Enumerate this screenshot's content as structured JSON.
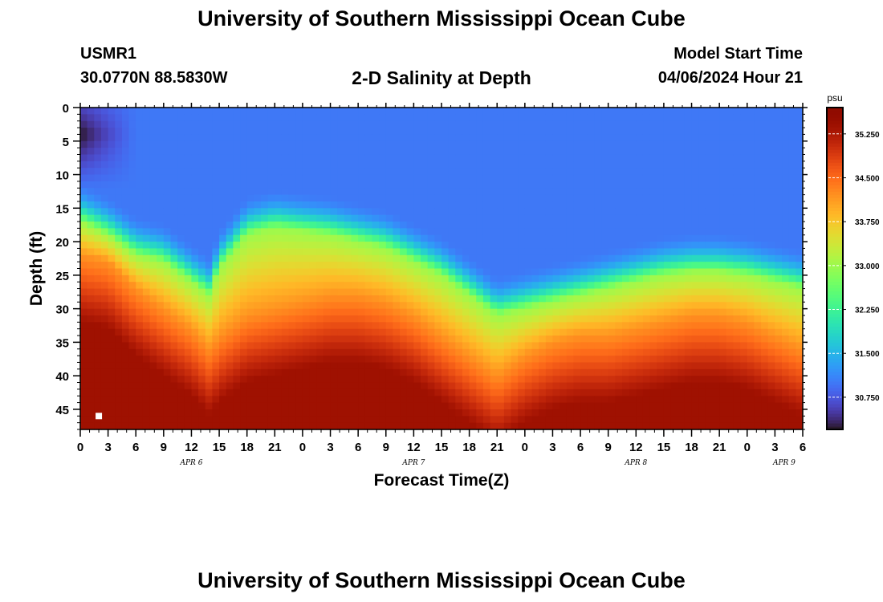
{
  "header": {
    "title": "University of Southern Mississippi Ocean Cube",
    "station_id": "USMR1",
    "coordinates": "30.0770N  88.5830W",
    "plot_title": "2-D Salinity at Depth",
    "model_start_label": "Model Start Time",
    "model_start_value": "04/06/2024 Hour 21"
  },
  "footer": {
    "title": "University of Southern Mississippi Ocean Cube"
  },
  "chart_data": {
    "type": "heatmap",
    "title": "2-D Salinity at Depth",
    "xlabel": "Forecast Time(Z)",
    "ylabel": "Depth (ft)",
    "x_range_hours_from_apr6_00z": [
      0,
      78
    ],
    "xlim": [
      "04/06 00Z",
      "04/09 06Z"
    ],
    "x_tick_labels": [
      "0",
      "3",
      "6",
      "9",
      "12",
      "15",
      "18",
      "21",
      "0",
      "3",
      "6",
      "9",
      "12",
      "15",
      "18",
      "21",
      "0",
      "3",
      "6",
      "9",
      "12",
      "15",
      "18",
      "21",
      "0",
      "3",
      "6"
    ],
    "x_tick_values": [
      "04/06 00Z",
      "04/06 03Z",
      "04/06 06Z",
      "04/06 09Z",
      "04/06 12Z",
      "04/06 15Z",
      "04/06 18Z",
      "04/06 21Z",
      "04/07 00Z",
      "04/07 03Z",
      "04/07 06Z",
      "04/07 09Z",
      "04/07 12Z",
      "04/07 15Z",
      "04/07 18Z",
      "04/07 21Z",
      "04/08 00Z",
      "04/08 03Z",
      "04/08 06Z",
      "04/08 09Z",
      "04/08 12Z",
      "04/08 15Z",
      "04/08 18Z",
      "04/08 21Z",
      "04/09 00Z",
      "04/09 03Z",
      "04/09 06Z"
    ],
    "day_labels": [
      {
        "label": "APR 6",
        "at": "04/06 12Z"
      },
      {
        "label": "APR 7",
        "at": "04/07 12Z"
      },
      {
        "label": "APR 8",
        "at": "04/08 12Z"
      },
      {
        "label": "APR 9",
        "at": "04/09 04Z"
      }
    ],
    "ylim": [
      0,
      48
    ],
    "y_inverted": true,
    "y_ticks": [
      0,
      5,
      10,
      15,
      20,
      25,
      30,
      35,
      40,
      45
    ],
    "colorbar": {
      "unit": "psu",
      "range": [
        30.2,
        35.7
      ],
      "ticks": [
        "30.750",
        "31.500",
        "32.250",
        "33.000",
        "33.750",
        "34.500",
        "35.250"
      ],
      "colormap": "turbo"
    },
    "field_description_values": {
      "surface_salinity_psu": 31.0,
      "bottom_salinity_psu": 35.4,
      "min_salinity_psu": 30.2,
      "halocline_center_depth_ft": [
        {
          "time": "04/06 00Z",
          "depth": 17
        },
        {
          "time": "04/06 03Z",
          "depth": 19
        },
        {
          "time": "04/06 06Z",
          "depth": 22
        },
        {
          "time": "04/06 09Z",
          "depth": 23
        },
        {
          "time": "04/06 12Z",
          "depth": 26
        },
        {
          "time": "04/06 14Z",
          "depth": 28
        },
        {
          "time": "04/06 15Z",
          "depth": 24
        },
        {
          "time": "04/06 18Z",
          "depth": 19
        },
        {
          "time": "04/06 21Z",
          "depth": 18
        },
        {
          "time": "04/07 00Z",
          "depth": 18.5
        },
        {
          "time": "04/07 03Z",
          "depth": 19
        },
        {
          "time": "04/07 06Z",
          "depth": 20
        },
        {
          "time": "04/07 09Z",
          "depth": 21
        },
        {
          "time": "04/07 12Z",
          "depth": 23
        },
        {
          "time": "04/07 15Z",
          "depth": 25
        },
        {
          "time": "04/07 18Z",
          "depth": 28
        },
        {
          "time": "04/07 21Z",
          "depth": 31
        },
        {
          "time": "04/08 00Z",
          "depth": 30
        },
        {
          "time": "04/08 03Z",
          "depth": 29
        },
        {
          "time": "04/08 06Z",
          "depth": 28
        },
        {
          "time": "04/08 09Z",
          "depth": 27
        },
        {
          "time": "04/08 12Z",
          "depth": 26
        },
        {
          "time": "04/08 15Z",
          "depth": 25
        },
        {
          "time": "04/08 18Z",
          "depth": 24.5
        },
        {
          "time": "04/08 21Z",
          "depth": 24.5
        },
        {
          "time": "04/09 00Z",
          "depth": 25
        },
        {
          "time": "04/09 03Z",
          "depth": 26
        },
        {
          "time": "04/09 06Z",
          "depth": 27
        }
      ],
      "deep_layer_top_depth_ft": [
        {
          "time": "04/06 00Z",
          "depth": 22
        },
        {
          "time": "04/06 03Z",
          "depth": 23
        },
        {
          "time": "04/06 06Z",
          "depth": 27
        },
        {
          "time": "04/06 09Z",
          "depth": 30
        },
        {
          "time": "04/06 12Z",
          "depth": 33
        },
        {
          "time": "04/06 14Z",
          "depth": 36
        },
        {
          "time": "04/06 15Z",
          "depth": 34
        },
        {
          "time": "04/06 18Z",
          "depth": 31
        },
        {
          "time": "04/06 21Z",
          "depth": 30
        },
        {
          "time": "04/07 00Z",
          "depth": 29
        },
        {
          "time": "04/07 03Z",
          "depth": 28
        },
        {
          "time": "04/07 06Z",
          "depth": 28
        },
        {
          "time": "04/07 09Z",
          "depth": 29
        },
        {
          "time": "04/07 12Z",
          "depth": 31
        },
        {
          "time": "04/07 15Z",
          "depth": 34
        },
        {
          "time": "04/07 18Z",
          "depth": 37
        },
        {
          "time": "04/07 21Z",
          "depth": 40
        },
        {
          "time": "04/08 00Z",
          "depth": 37
        },
        {
          "time": "04/08 03Z",
          "depth": 35
        },
        {
          "time": "04/08 06Z",
          "depth": 34
        },
        {
          "time": "04/08 09Z",
          "depth": 34
        },
        {
          "time": "04/08 12Z",
          "depth": 33
        },
        {
          "time": "04/08 15Z",
          "depth": 32
        },
        {
          "time": "04/08 18Z",
          "depth": 31
        },
        {
          "time": "04/08 21Z",
          "depth": 31
        },
        {
          "time": "04/09 00Z",
          "depth": 32
        },
        {
          "time": "04/09 03Z",
          "depth": 34
        },
        {
          "time": "04/09 06Z",
          "depth": 36
        }
      ]
    },
    "marker": {
      "time": "04/06 02Z",
      "depth": 46,
      "color": "#ffffff"
    }
  }
}
